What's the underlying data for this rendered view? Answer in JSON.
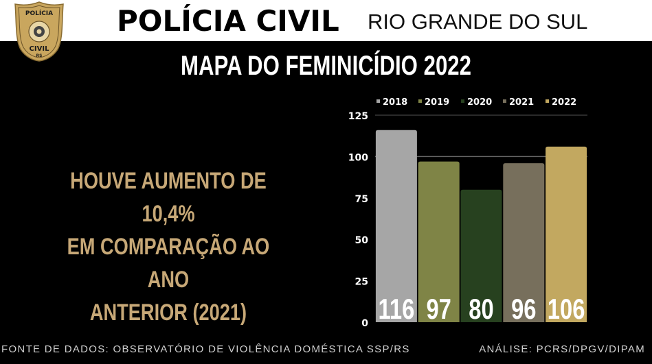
{
  "header": {
    "badge_top": "POLÍCIA",
    "badge_bottom": "CIVIL",
    "badge_state": "RS",
    "title": "POLÍCIA CIVIL",
    "subtitle": "RIO GRANDE DO SUL"
  },
  "map_title": "MAPA DO FEMINICÍDIO 2022",
  "headline": {
    "line1": "HOUVE AUMENTO DE 10,4%",
    "line2": "EM COMPARAÇÃO AO ANO",
    "line3": "ANTERIOR (2021)"
  },
  "footer": {
    "source": "FONTE DE DADOS: OBSERVATÓRIO DE VIOLÊNCIA DOMÉSTICA SSP/RS",
    "analysis": "ANÁLISE: PCRS/DPGV/DIPAM"
  },
  "colors": {
    "background": "#000000",
    "headline": "#c7a877",
    "badge_gold": "#c9a65e"
  },
  "chart_data": {
    "type": "bar",
    "title": "",
    "xlabel": "",
    "ylabel": "",
    "categories": [
      "2018",
      "2019",
      "2020",
      "2021",
      "2022"
    ],
    "values": [
      116,
      97,
      80,
      96,
      106
    ],
    "colors": [
      "#a6a6a6",
      "#7f8446",
      "#27411f",
      "#776f5c",
      "#c2a860"
    ],
    "ylim": [
      0,
      125
    ],
    "yticks": [
      0,
      25,
      50,
      75,
      100,
      125
    ],
    "legend": {
      "position": "top",
      "entries": [
        "2018",
        "2019",
        "2020",
        "2021",
        "2022"
      ]
    },
    "data_labels": true,
    "grid": false
  }
}
